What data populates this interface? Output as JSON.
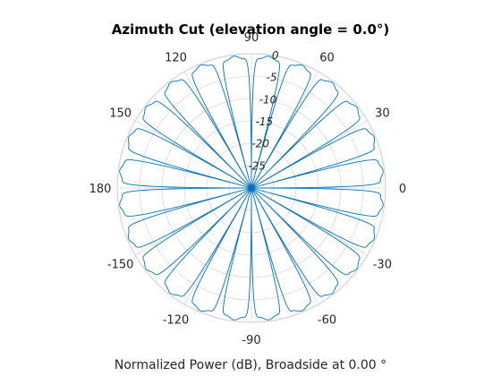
{
  "chart_data": {
    "type": "line",
    "subtype": "polar",
    "title": "Azimuth Cut (elevation angle = 0.0°)",
    "xlabel": "Normalized Power (dB), Broadside at 0.00 °",
    "angle_ticks": [
      {
        "deg": 0,
        "label": "0"
      },
      {
        "deg": 30,
        "label": "30"
      },
      {
        "deg": 60,
        "label": "60"
      },
      {
        "deg": 90,
        "label": "90"
      },
      {
        "deg": 120,
        "label": "120"
      },
      {
        "deg": 150,
        "label": "150"
      },
      {
        "deg": 180,
        "label": "180"
      },
      {
        "deg": -150,
        "label": "-150"
      },
      {
        "deg": -120,
        "label": "-120"
      },
      {
        "deg": -90,
        "label": "-90"
      },
      {
        "deg": -60,
        "label": "-60"
      },
      {
        "deg": -30,
        "label": "-30"
      }
    ],
    "radial_ticks": [
      {
        "value": 0,
        "label": "0"
      },
      {
        "value": -5,
        "label": "-5"
      },
      {
        "value": -10,
        "label": "-10"
      },
      {
        "value": -15,
        "label": "-15"
      },
      {
        "value": -20,
        "label": "-20"
      },
      {
        "value": -25,
        "label": "-25"
      }
    ],
    "rlim": [
      -30,
      0
    ],
    "theta_zero": "right",
    "theta_direction": "counterclockwise",
    "grid": true,
    "series": [
      {
        "color": "#0072bd",
        "lobe_centers_deg": [
          7.5,
          22.5,
          37.5,
          52.5,
          67.5,
          82.5,
          97.5,
          112.5,
          127.5,
          142.5,
          157.5,
          172.5,
          187.5,
          202.5,
          217.5,
          232.5,
          247.5,
          262.5,
          277.5,
          292.5,
          307.5,
          322.5,
          337.5,
          352.5
        ],
        "lobe_peak_db": 0,
        "null_db": -30
      }
    ]
  }
}
